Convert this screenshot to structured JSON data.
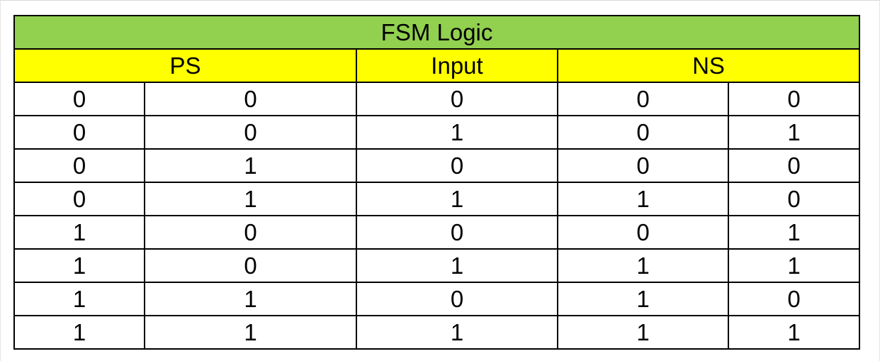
{
  "colors": {
    "title_bg": "#92d050",
    "header_bg": "#ffff00",
    "border": "#000000",
    "text": "#000000",
    "body_bg": "#ffffff"
  },
  "table": {
    "title": "FSM Logic",
    "groups": [
      {
        "label": "PS",
        "colspan": 2
      },
      {
        "label": "Input",
        "colspan": 1
      },
      {
        "label": "NS",
        "colspan": 2
      }
    ],
    "rows": [
      [
        "0",
        "0",
        "0",
        "0",
        "0"
      ],
      [
        "0",
        "0",
        "1",
        "0",
        "1"
      ],
      [
        "0",
        "1",
        "0",
        "0",
        "0"
      ],
      [
        "0",
        "1",
        "1",
        "1",
        "0"
      ],
      [
        "1",
        "0",
        "0",
        "0",
        "1"
      ],
      [
        "1",
        "0",
        "1",
        "1",
        "1"
      ],
      [
        "1",
        "1",
        "0",
        "1",
        "0"
      ],
      [
        "1",
        "1",
        "1",
        "1",
        "1"
      ]
    ]
  }
}
